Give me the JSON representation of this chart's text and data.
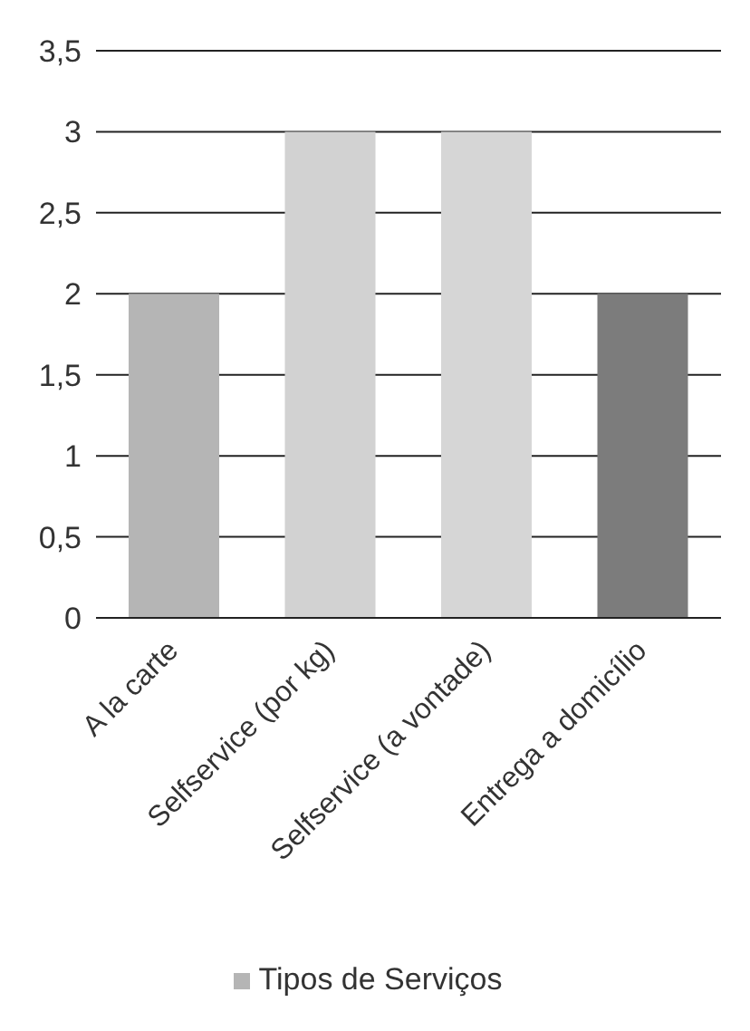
{
  "chart_data": {
    "type": "bar",
    "categories": [
      "A la carte",
      "Selfservice (por kg)",
      "Selfservice (a vontade)",
      "Entrega a domicílio"
    ],
    "series": [
      {
        "name": "Tipos de Serviços",
        "color": "#b5b5b5",
        "colors": [
          "#b5b5b5",
          "#d2d2d2",
          "#d6d6d6",
          "#7c7c7c"
        ],
        "values": [
          2,
          3,
          3,
          2
        ]
      }
    ],
    "ylim": [
      0,
      3.5
    ],
    "yticks": [
      {
        "value": 0,
        "label": "0"
      },
      {
        "value": 0.5,
        "label": "0,5"
      },
      {
        "value": 1,
        "label": "1"
      },
      {
        "value": 1.5,
        "label": "1,5"
      },
      {
        "value": 2,
        "label": "2"
      },
      {
        "value": 2.5,
        "label": "2,5"
      },
      {
        "value": 3,
        "label": "3"
      },
      {
        "value": 3.5,
        "label": "3,5"
      }
    ],
    "grid": "y",
    "legend": "bottom"
  }
}
